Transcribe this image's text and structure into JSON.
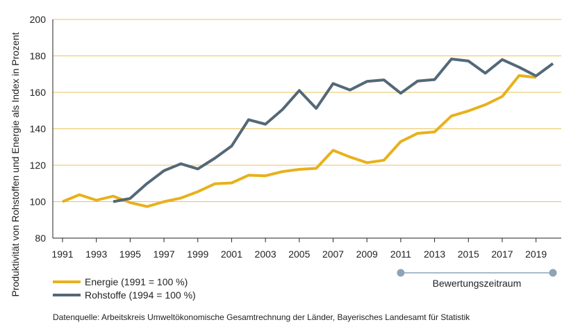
{
  "chart_data": {
    "type": "line",
    "ylabel": "Produktivität von Rohstoffen und Energie als Index in Prozent",
    "ylim": [
      80,
      200
    ],
    "yticks": [
      80,
      100,
      120,
      140,
      160,
      180,
      200
    ],
    "xlim": [
      1991,
      2020
    ],
    "xticks": [
      "1991",
      "1993",
      "1995",
      "1997",
      "1999",
      "2001",
      "2003",
      "2005",
      "2007",
      "2009",
      "2011",
      "2013",
      "2015",
      "2017",
      "2019"
    ],
    "grid": "horizontal",
    "series": [
      {
        "name": "Energie (1991 = 100 %)",
        "color": "#e8b11c",
        "x": [
          1991,
          1992,
          1993,
          1994,
          1995,
          1996,
          1997,
          1998,
          1999,
          2000,
          2001,
          2002,
          2003,
          2004,
          2005,
          2006,
          2007,
          2008,
          2009,
          2010,
          2011,
          2012,
          2013,
          2014,
          2015,
          2016,
          2017,
          2018,
          2019
        ],
        "values": [
          100,
          103.8,
          100.8,
          103,
          99.5,
          97.3,
          100,
          102,
          105.5,
          109.8,
          110.3,
          114.5,
          114.2,
          116.5,
          117.7,
          118.3,
          128.2,
          124.5,
          121.4,
          122.7,
          133,
          137.5,
          138.3,
          147,
          149.8,
          153.2,
          157.7,
          169.2,
          168.2
        ]
      },
      {
        "name": "Rohstoffe (1994 = 100 %)",
        "color": "#536878",
        "x": [
          1994,
          1995,
          1996,
          1997,
          1998,
          1999,
          2000,
          2001,
          2002,
          2003,
          2004,
          2005,
          2006,
          2007,
          2008,
          2009,
          2010,
          2011,
          2012,
          2013,
          2014,
          2015,
          2016,
          2017,
          2018,
          2019,
          2020
        ],
        "values": [
          100,
          101.8,
          110,
          117,
          120.8,
          118,
          123.8,
          130.5,
          145,
          142.5,
          150.5,
          161,
          151.2,
          164.8,
          161.3,
          166,
          166.8,
          159.5,
          166.2,
          167,
          178.3,
          177.2,
          170.5,
          178,
          173.8,
          169,
          175.8
        ]
      }
    ],
    "annotation": {
      "label": "Bewertungszeitraum",
      "from": 2011,
      "to": 2020
    },
    "source": "Datenquelle: Arbeitskreis Umweltökonomische Gesamtrechnung der Länder, Bayerisches Landesamt für Statistik",
    "legend": "bottom-left",
    "grid_color": "#e8c35a",
    "axis_color": "#222222",
    "annotation_color": "#8ea4b6"
  }
}
